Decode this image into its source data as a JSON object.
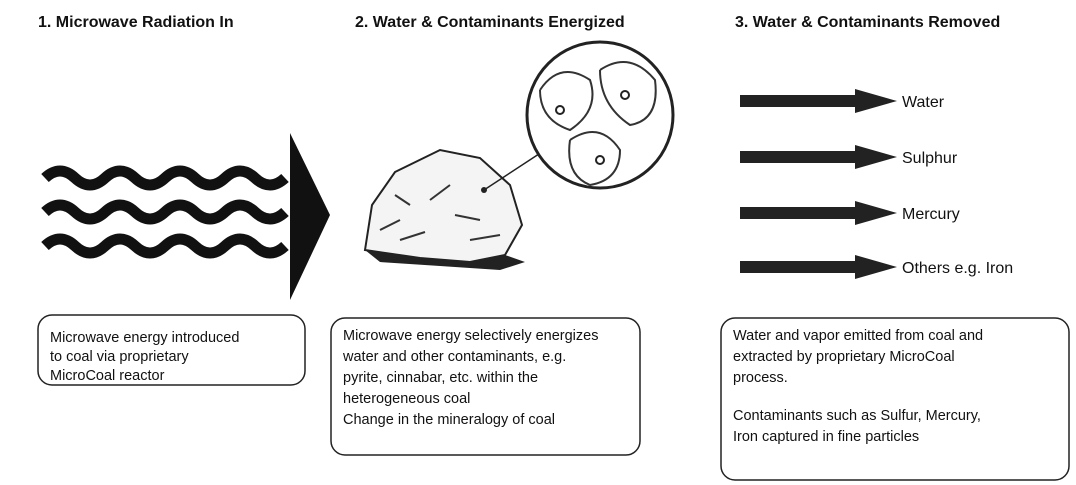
{
  "steps": [
    {
      "title": "1. Microwave Radiation In",
      "description": [
        "Microwave energy  introduced",
        "to coal via proprietary",
        "MicroCoal reactor"
      ]
    },
    {
      "title": "2. Water & Contaminants Energized",
      "description": [
        "Microwave energy selectively energizes",
        "water and other contaminants, e.g.",
        "pyrite, cinnabar, etc. within the",
        "heterogeneous coal",
        "Change in the mineralogy  of  coal"
      ]
    },
    {
      "title": "3. Water & Contaminants Removed",
      "outputs": [
        "Water",
        "Sulphur",
        "Mercury",
        "Others e.g. Iron"
      ],
      "description": [
        [
          "Water and vapor emitted from coal and",
          "extracted by proprietary MicroCoal",
          "process."
        ],
        [
          "Contaminants such as Sulfur,  Mercury,",
          "Iron captured in fine particles"
        ]
      ]
    }
  ]
}
